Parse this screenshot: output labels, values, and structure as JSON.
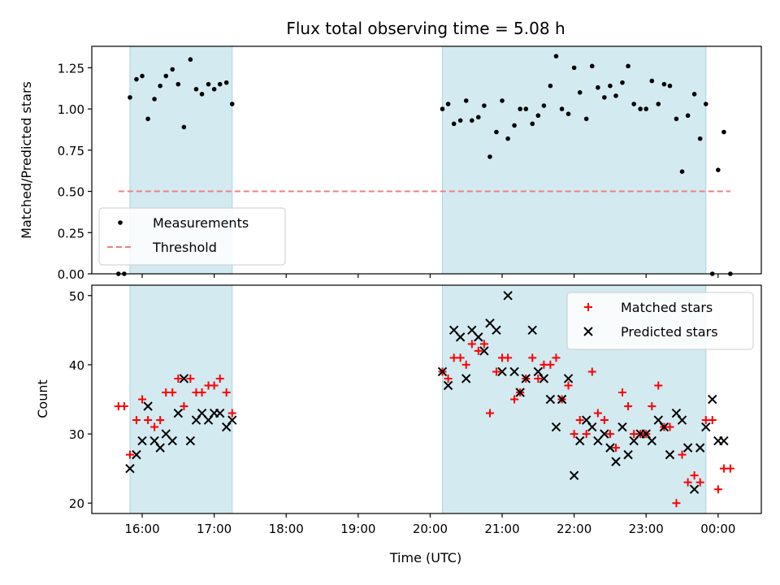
{
  "figure_title": "Flux total observing time = 5.08 h",
  "chart_data": [
    {
      "type": "scatter",
      "ylabel": "Matched/Predicted stars",
      "xlim": [
        15.3,
        24.6
      ],
      "ylim": [
        0,
        1.38
      ],
      "yticks": [
        0.0,
        0.25,
        0.5,
        0.75,
        1.0,
        1.25
      ],
      "ytick_labels": [
        "0.00",
        "0.25",
        "0.50",
        "0.75",
        "1.00",
        "1.25"
      ],
      "grid": false,
      "legend_position": "lower-left",
      "shaded_spans": [
        [
          15.83,
          17.25
        ],
        [
          20.17,
          23.83
        ]
      ],
      "shade_color": "#d3eaf1",
      "threshold": {
        "name": "Threshold",
        "y": 0.5,
        "x_range": [
          15.67,
          24.17
        ],
        "color": "#f08080"
      },
      "series": [
        {
          "name": "Measurements",
          "marker": "dot",
          "color": "#000000",
          "x": [
            15.67,
            15.75,
            15.83,
            15.92,
            16.0,
            16.08,
            16.17,
            16.25,
            16.33,
            16.42,
            16.5,
            16.58,
            16.67,
            16.75,
            16.83,
            16.92,
            17.0,
            17.08,
            17.17,
            17.25,
            20.17,
            20.25,
            20.33,
            20.42,
            20.5,
            20.58,
            20.67,
            20.75,
            20.83,
            20.92,
            21.0,
            21.08,
            21.17,
            21.25,
            21.33,
            21.42,
            21.5,
            21.58,
            21.67,
            21.75,
            21.83,
            21.92,
            22.0,
            22.08,
            22.17,
            22.25,
            22.33,
            22.42,
            22.5,
            22.58,
            22.67,
            22.75,
            22.83,
            22.92,
            23.0,
            23.08,
            23.17,
            23.25,
            23.33,
            23.42,
            23.5,
            23.58,
            23.67,
            23.75,
            23.83,
            23.92,
            24.0,
            24.08,
            24.17
          ],
          "y": [
            0.0,
            0.0,
            1.07,
            1.18,
            1.2,
            0.94,
            1.06,
            1.14,
            1.2,
            1.24,
            1.15,
            0.89,
            1.3,
            1.12,
            1.09,
            1.15,
            1.12,
            1.15,
            1.16,
            1.03,
            1.0,
            1.03,
            0.91,
            0.93,
            1.05,
            0.93,
            0.95,
            1.02,
            0.71,
            0.86,
            1.05,
            0.82,
            0.9,
            1.0,
            1.0,
            0.91,
            0.96,
            1.02,
            1.14,
            1.32,
            1.0,
            0.97,
            1.25,
            1.1,
            0.94,
            1.26,
            1.13,
            1.07,
            1.14,
            1.08,
            1.16,
            1.26,
            1.03,
            1.0,
            1.0,
            1.17,
            1.03,
            1.15,
            1.14,
            0.94,
            0.62,
            0.96,
            1.09,
            0.82,
            1.03,
            0.0,
            0.63,
            0.86,
            0.0
          ]
        }
      ]
    },
    {
      "type": "scatter",
      "xlabel": "Time (UTC)",
      "ylabel": "Count",
      "xlim": [
        15.3,
        24.6
      ],
      "ylim": [
        18.5,
        51.5
      ],
      "xticks": [
        16,
        17,
        18,
        19,
        20,
        21,
        22,
        23,
        24
      ],
      "xtick_labels": [
        "16:00",
        "17:00",
        "18:00",
        "19:00",
        "20:00",
        "21:00",
        "22:00",
        "23:00",
        "00:00"
      ],
      "yticks": [
        20,
        30,
        40,
        50
      ],
      "ytick_labels": [
        "20",
        "30",
        "40",
        "50"
      ],
      "grid": false,
      "legend_position": "top-right",
      "shaded_spans": [
        [
          15.83,
          17.25
        ],
        [
          20.17,
          23.83
        ]
      ],
      "shade_color": "#d3eaf1",
      "series": [
        {
          "name": "Matched stars",
          "marker": "plus",
          "color": "#ff0000",
          "x": [
            15.67,
            15.75,
            15.83,
            15.92,
            16.0,
            16.08,
            16.17,
            16.25,
            16.33,
            16.42,
            16.5,
            16.58,
            16.67,
            16.75,
            16.83,
            16.92,
            17.0,
            17.08,
            17.17,
            17.25,
            20.17,
            20.25,
            20.33,
            20.42,
            20.5,
            20.58,
            20.67,
            20.75,
            20.83,
            20.92,
            21.0,
            21.08,
            21.17,
            21.25,
            21.33,
            21.42,
            21.5,
            21.58,
            21.67,
            21.75,
            21.83,
            21.92,
            22.0,
            22.08,
            22.17,
            22.25,
            22.33,
            22.42,
            22.5,
            22.58,
            22.67,
            22.75,
            22.83,
            22.92,
            23.0,
            23.08,
            23.17,
            23.25,
            23.33,
            23.42,
            23.5,
            23.58,
            23.67,
            23.75,
            23.83,
            23.92,
            24.0,
            24.08,
            24.17
          ],
          "y": [
            34,
            34,
            27,
            32,
            35,
            32,
            31,
            32,
            36,
            36,
            38,
            34,
            38,
            36,
            36,
            37,
            37,
            38,
            36,
            33,
            39,
            38,
            41,
            41,
            40,
            43,
            42,
            43,
            33,
            39,
            41,
            41,
            35,
            36,
            38,
            41,
            38,
            40,
            40,
            41,
            35,
            37,
            30,
            32,
            30,
            39,
            33,
            32,
            30,
            28,
            36,
            34,
            30,
            30,
            30,
            34,
            37,
            31,
            31,
            20,
            27,
            23,
            24,
            23,
            32,
            32,
            22,
            25,
            25
          ]
        },
        {
          "name": "Predicted stars",
          "marker": "x",
          "color": "#000000",
          "x": [
            15.83,
            15.92,
            16.0,
            16.08,
            16.17,
            16.25,
            16.33,
            16.42,
            16.5,
            16.58,
            16.67,
            16.75,
            16.83,
            16.92,
            17.0,
            17.08,
            17.17,
            17.25,
            20.17,
            20.25,
            20.33,
            20.42,
            20.5,
            20.58,
            20.67,
            20.75,
            20.83,
            20.92,
            21.0,
            21.08,
            21.17,
            21.25,
            21.33,
            21.42,
            21.5,
            21.58,
            21.67,
            21.75,
            21.83,
            21.92,
            22.0,
            22.08,
            22.17,
            22.25,
            22.33,
            22.42,
            22.5,
            22.58,
            22.67,
            22.75,
            22.83,
            22.92,
            23.0,
            23.08,
            23.17,
            23.25,
            23.33,
            23.42,
            23.5,
            23.58,
            23.67,
            23.75,
            23.83,
            23.92,
            24.0,
            24.08
          ],
          "y": [
            25,
            27,
            29,
            34,
            29,
            28,
            30,
            29,
            33,
            38,
            29,
            32,
            33,
            32,
            33,
            33,
            31,
            32,
            39,
            37,
            45,
            44,
            38,
            45,
            44,
            42,
            46,
            45,
            39,
            50,
            39,
            36,
            38,
            45,
            39,
            38,
            35,
            31,
            35,
            38,
            24,
            29,
            32,
            31,
            29,
            30,
            28,
            26,
            31,
            27,
            29,
            30,
            30,
            29,
            32,
            31,
            27,
            33,
            32,
            28,
            22,
            28,
            31,
            35,
            29,
            29
          ]
        }
      ]
    }
  ]
}
